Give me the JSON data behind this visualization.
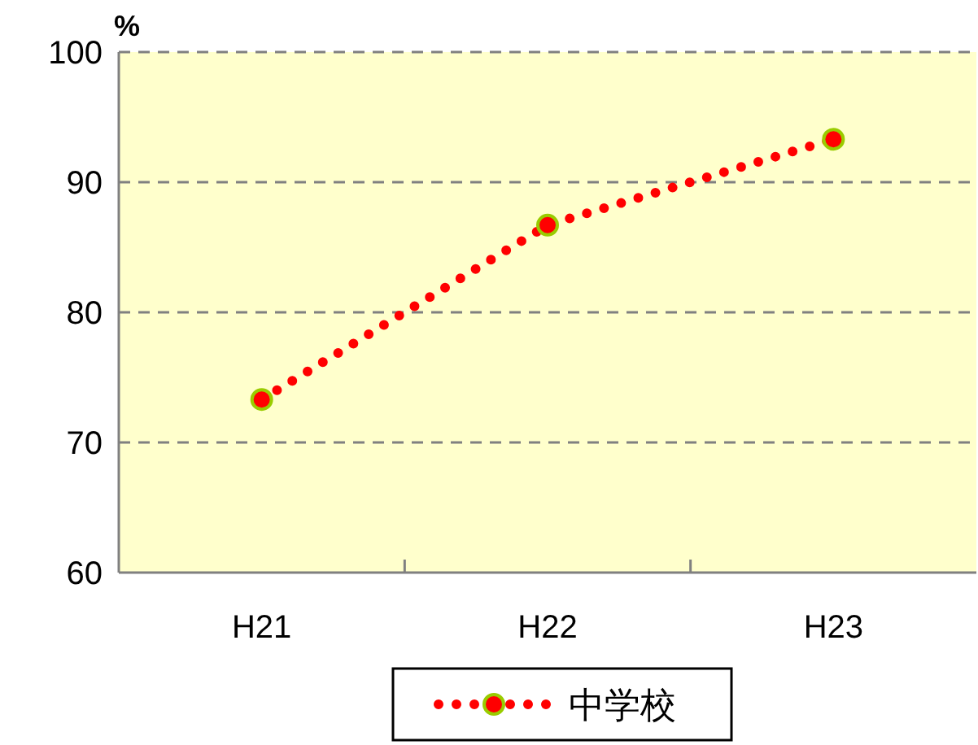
{
  "chart_data": {
    "type": "line",
    "ylabel": "%",
    "categories": [
      "H21",
      "H22",
      "H23"
    ],
    "series": [
      {
        "name": "中学校",
        "color": "#ff0000",
        "values": [
          73.3,
          86.7,
          93.3
        ]
      }
    ],
    "ylim": [
      60,
      100
    ],
    "yticks": [
      60,
      70,
      80,
      90,
      100
    ],
    "grid": "y",
    "legend": "bottom",
    "marker": "circle",
    "line_style": "dotted"
  }
}
